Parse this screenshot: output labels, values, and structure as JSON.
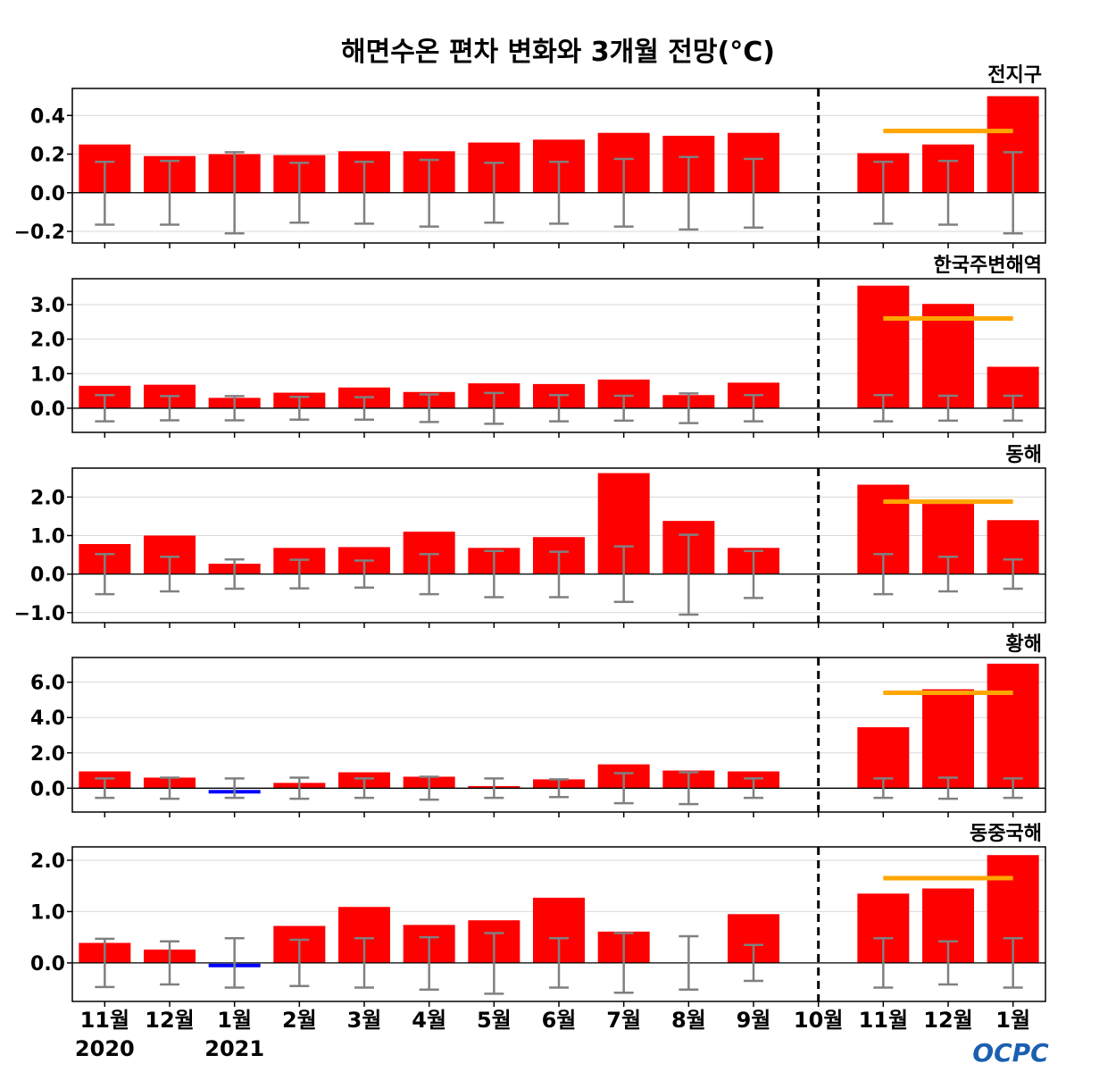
{
  "title": "해면수온 편차 변화와 3개월 전망(°C)",
  "logo_text": "OCPC",
  "x_labels": [
    {
      "month": "11월",
      "year": "2020"
    },
    {
      "month": "12월",
      "year": ""
    },
    {
      "month": "1월",
      "year": "2021"
    },
    {
      "month": "2월",
      "year": ""
    },
    {
      "month": "3월",
      "year": ""
    },
    {
      "month": "4월",
      "year": ""
    },
    {
      "month": "5월",
      "year": ""
    },
    {
      "month": "6월",
      "year": ""
    },
    {
      "month": "7월",
      "year": ""
    },
    {
      "month": "8월",
      "year": ""
    },
    {
      "month": "9월",
      "year": ""
    },
    {
      "month": "10월",
      "year": ""
    },
    {
      "month": "11월",
      "year": ""
    },
    {
      "month": "12월",
      "year": ""
    },
    {
      "month": "1월",
      "year": ""
    }
  ],
  "colors": {
    "positive_bar": "#ff0000",
    "negative_bar": "#0000ff",
    "error_bar": "#808080",
    "outlook_mean": "#ffa500",
    "divider": "#000000",
    "logo": "#1b5fb0"
  },
  "chart_data": [
    {
      "type": "bar",
      "region": "전지구",
      "categories": [
        "11월 2020",
        "12월",
        "1월 2021",
        "2월",
        "3월",
        "4월",
        "5월",
        "6월",
        "7월",
        "8월",
        "9월",
        "10월",
        "11월",
        "12월",
        "1월"
      ],
      "values": [
        0.25,
        0.19,
        0.2,
        0.195,
        0.215,
        0.215,
        0.26,
        0.275,
        0.31,
        0.295,
        0.31,
        0,
        0.205,
        0.25,
        0.5
      ],
      "error_upper": [
        0.16,
        0.165,
        0.21,
        0.155,
        0.16,
        0.17,
        0.155,
        0.16,
        0.175,
        0.185,
        0.175,
        null,
        0.16,
        0.165,
        0.21
      ],
      "error_lower": [
        -0.165,
        -0.165,
        -0.21,
        -0.155,
        -0.16,
        -0.175,
        -0.155,
        -0.16,
        -0.175,
        -0.19,
        -0.18,
        null,
        -0.16,
        -0.165,
        -0.21
      ],
      "outlook_mean": 0.32,
      "ylim": [
        -0.26,
        0.54
      ],
      "yticks": [
        -0.2,
        0.0,
        0.2,
        0.4
      ],
      "ytick_labels": [
        "−0.2",
        "0.0",
        "0.2",
        "0.4"
      ]
    },
    {
      "type": "bar",
      "region": "한국주변해역",
      "categories": [
        "11월 2020",
        "12월",
        "1월 2021",
        "2월",
        "3월",
        "4월",
        "5월",
        "6월",
        "7월",
        "8월",
        "9월",
        "10월",
        "11월",
        "12월",
        "1월"
      ],
      "values": [
        0.65,
        0.68,
        0.3,
        0.45,
        0.6,
        0.47,
        0.72,
        0.7,
        0.83,
        0.38,
        0.74,
        0,
        3.55,
        3.02,
        1.2
      ],
      "error_upper": [
        0.38,
        0.35,
        0.35,
        0.33,
        0.32,
        0.4,
        0.44,
        0.38,
        0.36,
        0.43,
        0.38,
        null,
        0.38,
        0.36,
        0.36
      ],
      "error_lower": [
        -0.38,
        -0.35,
        -0.35,
        -0.33,
        -0.33,
        -0.4,
        -0.45,
        -0.38,
        -0.36,
        -0.43,
        -0.38,
        null,
        -0.38,
        -0.36,
        -0.36
      ],
      "outlook_mean": 2.6,
      "ylim": [
        -0.7,
        3.75
      ],
      "yticks": [
        0.0,
        1.0,
        2.0,
        3.0
      ],
      "ytick_labels": [
        "0.0",
        "1.0",
        "2.0",
        "3.0"
      ]
    },
    {
      "type": "bar",
      "region": "동해",
      "categories": [
        "11월 2020",
        "12월",
        "1월 2021",
        "2월",
        "3월",
        "4월",
        "5월",
        "6월",
        "7월",
        "8월",
        "9월",
        "10월",
        "11월",
        "12월",
        "1월"
      ],
      "values": [
        0.78,
        1.0,
        0.27,
        0.68,
        0.7,
        1.1,
        0.68,
        0.96,
        2.62,
        1.38,
        0.68,
        0,
        2.32,
        1.82,
        1.4
      ],
      "error_upper": [
        0.52,
        0.45,
        0.38,
        0.37,
        0.35,
        0.52,
        0.6,
        0.58,
        0.72,
        1.02,
        0.6,
        null,
        0.52,
        0.45,
        0.38
      ],
      "error_lower": [
        -0.52,
        -0.45,
        -0.38,
        -0.37,
        -0.35,
        -0.52,
        -0.6,
        -0.6,
        -0.72,
        -1.05,
        -0.62,
        null,
        -0.52,
        -0.45,
        -0.38
      ],
      "outlook_mean": 1.88,
      "ylim": [
        -1.26,
        2.75
      ],
      "yticks": [
        -1.0,
        0.0,
        1.0,
        2.0
      ],
      "ytick_labels": [
        "−1.0",
        "0.0",
        "1.0",
        "2.0"
      ]
    },
    {
      "type": "bar",
      "region": "황해",
      "categories": [
        "11월 2020",
        "12월",
        "1월 2021",
        "2월",
        "3월",
        "4월",
        "5월",
        "6월",
        "7월",
        "8월",
        "9월",
        "10월",
        "11월",
        "12월",
        "1월"
      ],
      "values": [
        0.95,
        0.6,
        -0.2,
        0.3,
        0.9,
        0.65,
        0.12,
        0.5,
        1.35,
        1.0,
        0.95,
        0,
        3.45,
        5.6,
        7.05
      ],
      "error_upper": [
        0.55,
        0.6,
        0.55,
        0.6,
        0.55,
        0.65,
        0.55,
        0.5,
        0.85,
        0.9,
        0.55,
        null,
        0.55,
        0.6,
        0.55
      ],
      "error_lower": [
        -0.55,
        -0.6,
        -0.55,
        -0.6,
        -0.55,
        -0.65,
        -0.55,
        -0.5,
        -0.85,
        -0.9,
        -0.55,
        null,
        -0.55,
        -0.6,
        -0.55
      ],
      "outlook_mean": 5.4,
      "ylim": [
        -1.35,
        7.4
      ],
      "yticks": [
        0.0,
        2.0,
        4.0,
        6.0
      ],
      "ytick_labels": [
        "0.0",
        "2.0",
        "4.0",
        "6.0"
      ]
    },
    {
      "type": "bar",
      "region": "동중국해",
      "categories": [
        "11월 2020",
        "12월",
        "1월 2021",
        "2월",
        "3월",
        "4월",
        "5월",
        "6월",
        "7월",
        "8월",
        "9월",
        "10월",
        "11월",
        "12월",
        "1월"
      ],
      "values": [
        0.39,
        0.26,
        -0.05,
        0.72,
        1.09,
        0.74,
        0.83,
        1.27,
        0.61,
        0,
        0.95,
        0,
        1.35,
        1.45,
        2.1
      ],
      "error_upper": [
        0.47,
        0.42,
        0.48,
        0.45,
        0.48,
        0.5,
        0.58,
        0.48,
        0.58,
        0.52,
        0.35,
        null,
        0.48,
        0.42,
        0.48
      ],
      "error_lower": [
        -0.47,
        -0.42,
        -0.48,
        -0.45,
        -0.48,
        -0.52,
        -0.6,
        -0.48,
        -0.58,
        -0.52,
        -0.35,
        null,
        -0.48,
        -0.42,
        -0.48
      ],
      "outlook_mean": 1.65,
      "ylim": [
        -0.75,
        2.26
      ],
      "yticks": [
        0.0,
        1.0,
        2.0
      ],
      "ytick_labels": [
        "0.0",
        "1.0",
        "2.0"
      ]
    }
  ]
}
